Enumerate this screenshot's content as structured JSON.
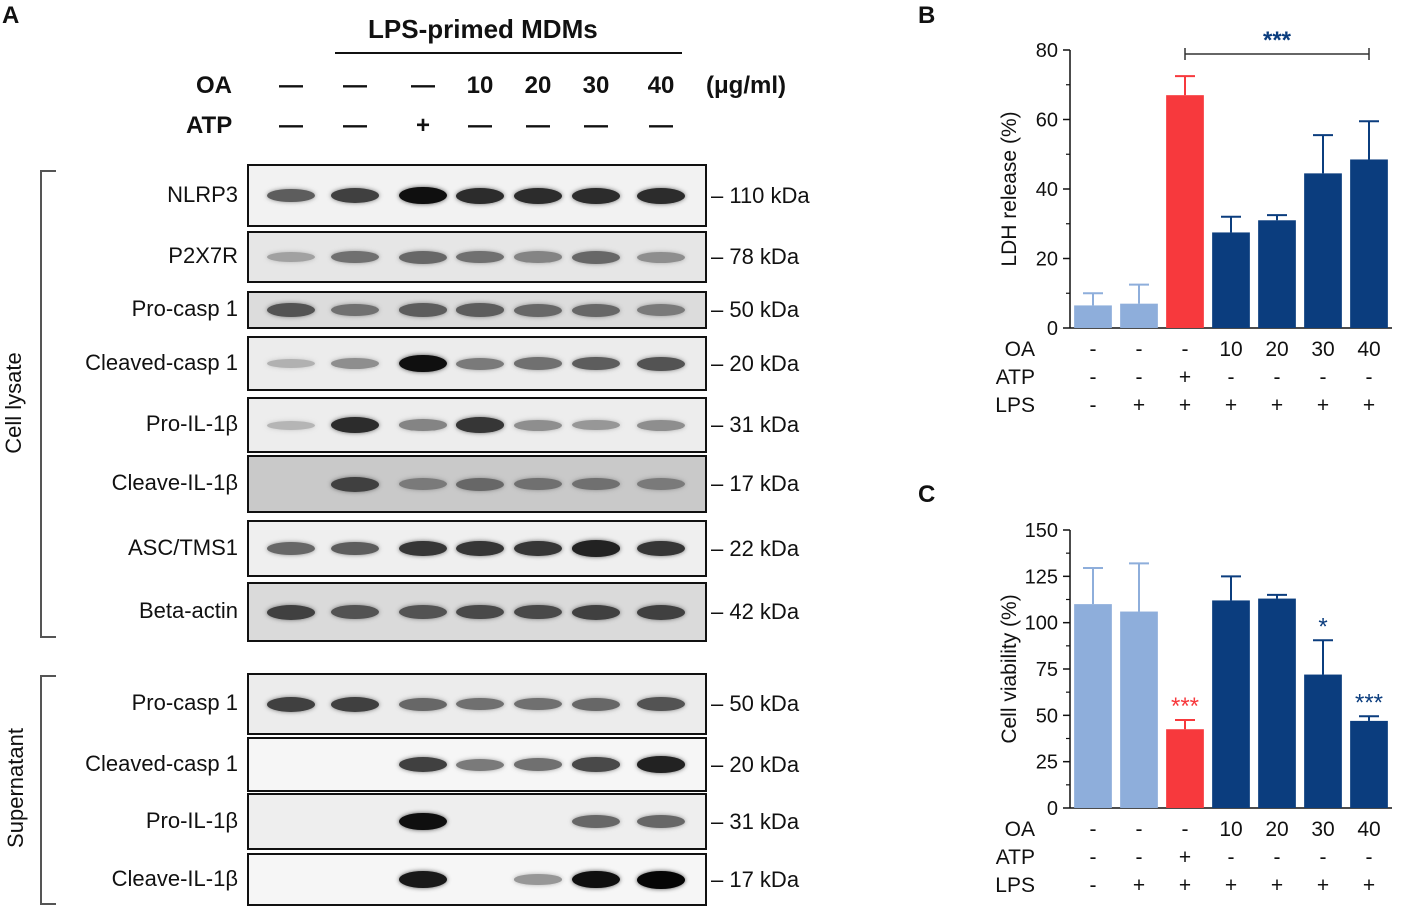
{
  "panel_a": {
    "letter": "A",
    "header": "LPS-primed MDMs",
    "oa_label": "OA",
    "atp_label": "ATP",
    "oa_values": [
      "—",
      "—",
      "—",
      "10",
      "20",
      "30",
      "40"
    ],
    "atp_values": [
      "—",
      "—",
      "+",
      "—",
      "—",
      "—",
      "—"
    ],
    "unit": "(μg/ml)",
    "group_cell": "Cell lysate",
    "group_sup": "Supernatant",
    "blots": [
      {
        "label": "NLRP3",
        "kda": "– 110 kDa",
        "intensity": [
          0.55,
          0.7,
          0.95,
          0.8,
          0.8,
          0.8,
          0.8
        ],
        "bg": "#f2f2f2"
      },
      {
        "label": "P2X7R",
        "kda": "– 78 kDa",
        "intensity": [
          0.2,
          0.45,
          0.5,
          0.45,
          0.35,
          0.5,
          0.3
        ],
        "bg": "#e6e6e6"
      },
      {
        "label": "Pro-casp 1",
        "kda": "– 50 kDa",
        "intensity": [
          0.6,
          0.45,
          0.55,
          0.55,
          0.5,
          0.5,
          0.4
        ],
        "bg": "#dcdcdc"
      },
      {
        "label": "Cleaved-casp 1",
        "kda": "– 20 kDa",
        "intensity": [
          0.12,
          0.3,
          0.95,
          0.4,
          0.45,
          0.55,
          0.6
        ],
        "bg": "#ececec"
      },
      {
        "label": "Pro-IL-1β",
        "kda": "– 31 kDa",
        "intensity": [
          0.1,
          0.8,
          0.35,
          0.75,
          0.3,
          0.25,
          0.3
        ],
        "bg": "#ededed"
      },
      {
        "label": "Cleave-IL-1β",
        "kda": "– 17 kDa",
        "intensity": [
          0.0,
          0.7,
          0.4,
          0.5,
          0.45,
          0.45,
          0.4
        ],
        "bg": "#c9c9c9"
      },
      {
        "label": "ASC/TMS1",
        "kda": "– 22 kDa",
        "intensity": [
          0.5,
          0.55,
          0.75,
          0.75,
          0.75,
          0.85,
          0.75
        ],
        "bg": "#efefef"
      },
      {
        "label": "Beta-actin",
        "kda": "– 42 kDa",
        "intensity": [
          0.7,
          0.6,
          0.6,
          0.65,
          0.65,
          0.7,
          0.7
        ],
        "bg": "#dadada"
      },
      {
        "label": "Pro-casp 1",
        "kda": "– 50 kDa",
        "intensity": [
          0.7,
          0.7,
          0.5,
          0.45,
          0.45,
          0.5,
          0.6
        ],
        "bg": "#ececec"
      },
      {
        "label": "Cleaved-casp 1",
        "kda": "– 20 kDa",
        "intensity": [
          0.0,
          0.0,
          0.7,
          0.4,
          0.45,
          0.65,
          0.85
        ],
        "bg": "#f6f6f6"
      },
      {
        "label": "Pro-IL-1β",
        "kda": "– 31 kDa",
        "intensity": [
          0.0,
          0.0,
          0.95,
          0.0,
          0.0,
          0.5,
          0.5
        ],
        "bg": "#eeeeee"
      },
      {
        "label": "Cleave-IL-1β",
        "kda": "– 17 kDa",
        "intensity": [
          0.0,
          0.0,
          0.9,
          0.0,
          0.25,
          0.95,
          1.0
        ],
        "bg": "#f6f6f6"
      }
    ]
  },
  "panel_b": {
    "letter": "B",
    "significance": "***",
    "row_labels": [
      "OA",
      "ATP",
      "LPS"
    ],
    "oa": [
      "-",
      "-",
      "-",
      "10",
      "20",
      "30",
      "40"
    ],
    "atp": [
      "-",
      "-",
      "+",
      "-",
      "-",
      "-",
      "-"
    ],
    "lps": [
      "-",
      "+",
      "+",
      "+",
      "+",
      "+",
      "+"
    ]
  },
  "panel_c": {
    "letter": "C",
    "row_labels": [
      "OA",
      "ATP",
      "LPS"
    ],
    "oa": [
      "-",
      "-",
      "-",
      "10",
      "20",
      "30",
      "40"
    ],
    "atp": [
      "-",
      "-",
      "+",
      "-",
      "-",
      "-",
      "-"
    ],
    "lps": [
      "-",
      "+",
      "+",
      "+",
      "+",
      "+",
      "+"
    ]
  },
  "chart_data": [
    {
      "type": "bar",
      "ylabel": "LDH release (%)",
      "ylim": [
        0,
        80
      ],
      "yticks": [
        0,
        20,
        40,
        60,
        80
      ],
      "values": [
        6.5,
        7,
        67,
        27.5,
        31,
        44.5,
        48.5
      ],
      "errors": [
        3.5,
        5.5,
        5.5,
        4.5,
        1.5,
        11,
        11
      ],
      "colors": [
        "#8eaedb",
        "#8eaedb",
        "#f7393d",
        "#0b3d7e",
        "#0b3d7e",
        "#0b3d7e",
        "#0b3d7e"
      ],
      "annotations": [
        "",
        "",
        "",
        "",
        "",
        "",
        ""
      ]
    },
    {
      "type": "bar",
      "ylabel": "Cell viability (%)",
      "ylim": [
        0,
        150
      ],
      "yticks": [
        0,
        25,
        50,
        75,
        100,
        125,
        150
      ],
      "values": [
        110,
        106,
        42.5,
        112,
        113,
        72,
        47
      ],
      "errors": [
        19.5,
        26,
        5,
        13,
        2,
        18.5,
        2.5
      ],
      "colors": [
        "#8eaedb",
        "#8eaedb",
        "#f7393d",
        "#0b3d7e",
        "#0b3d7e",
        "#0b3d7e",
        "#0b3d7e"
      ],
      "annotations": [
        "",
        "",
        "***",
        "",
        "",
        "*",
        "***"
      ],
      "annotation_colors": [
        "",
        "",
        "#f7393d",
        "",
        "",
        "#0b3d7e",
        "#0b3d7e"
      ]
    }
  ]
}
